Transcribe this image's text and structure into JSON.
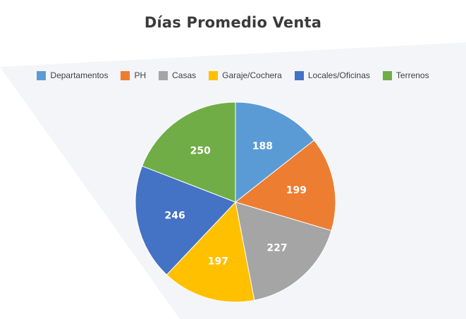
{
  "chart_data": {
    "type": "pie",
    "title": "Días Promedio Venta",
    "categories": [
      "Departamentos",
      "PH",
      "Casas",
      "Garaje/Cochera",
      "Locales/Oficinas",
      "Terrenos"
    ],
    "values": [
      188,
      199,
      227,
      197,
      246,
      250
    ],
    "colors": [
      "#5b9bd5",
      "#ed7d31",
      "#a5a5a5",
      "#ffc000",
      "#4472c4",
      "#70ad47"
    ],
    "legend_position": "top"
  }
}
